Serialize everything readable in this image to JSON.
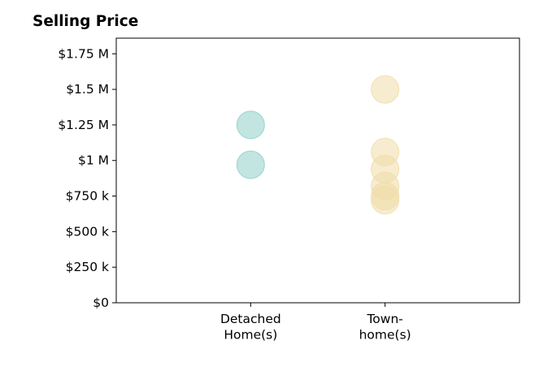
{
  "chart_data": {
    "type": "scatter",
    "title": "Selling Price",
    "xlabel": "",
    "ylabel": "",
    "categories": [
      [
        "Detached",
        "Home(s)"
      ],
      [
        "Town-",
        "home(s)"
      ]
    ],
    "xlim": [
      -1,
      2
    ],
    "ylim": [
      0,
      1860000
    ],
    "yticks": [
      0,
      250000,
      500000,
      750000,
      1000000,
      1250000,
      1500000,
      1750000
    ],
    "ytick_labels": [
      "$0",
      "$250 k",
      "$500 k",
      "$750 k",
      "$1 M",
      "$1.25 M",
      "$1.5 M",
      "$1.75 M"
    ],
    "grid": false,
    "series": [
      {
        "category_index": 0,
        "color": "#8fcfc9",
        "values": [
          1250000,
          970000
        ]
      },
      {
        "category_index": 1,
        "color": "#f0dca8",
        "values": [
          1500000,
          1060000,
          940000,
          820000,
          750000,
          720000
        ]
      }
    ]
  }
}
